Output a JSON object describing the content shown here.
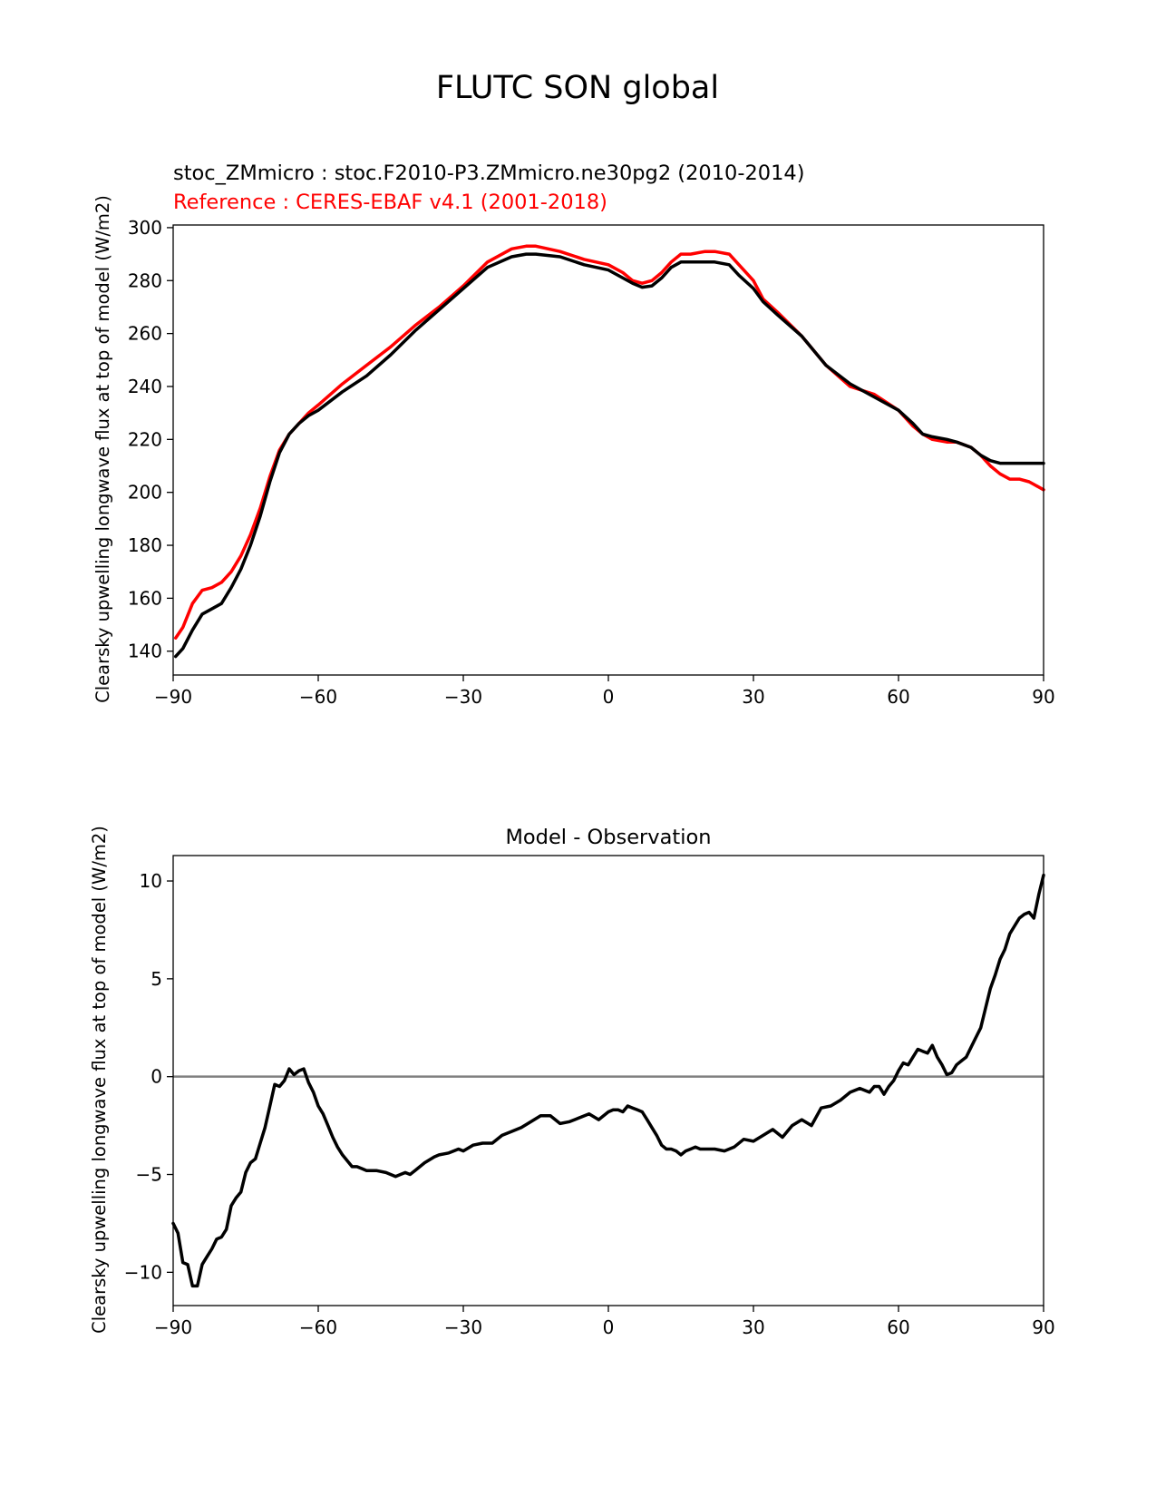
{
  "figure": {
    "suptitle": "FLUTC SON global"
  },
  "chart_data": [
    {
      "type": "line",
      "title_left": "stoc_ZMmicro : stoc.F2010-P3.ZMmicro.ne30pg2 (2010-2014)",
      "title_ref": "Reference : CERES-EBAF v4.1 (2001-2018)",
      "xlabel": "",
      "ylabel": "Clearsky upwelling longwave flux at top of model (W/m2)",
      "xlim": [
        -90,
        90
      ],
      "ylim": [
        131,
        301
      ],
      "xticks": [
        -90,
        -60,
        -30,
        0,
        30,
        60,
        90
      ],
      "xtick_labels": [
        "−90",
        "−60",
        "−30",
        "0",
        "30",
        "60",
        "90"
      ],
      "yticks": [
        140,
        160,
        180,
        200,
        220,
        240,
        260,
        280,
        300
      ],
      "ytick_labels": [
        "140",
        "160",
        "180",
        "200",
        "220",
        "240",
        "260",
        "280",
        "300"
      ],
      "series": [
        {
          "color": "#ff0000",
          "x": [
            -89.5,
            -88,
            -86,
            -84,
            -82,
            -80,
            -78,
            -76,
            -74,
            -72,
            -70,
            -68,
            -66,
            -64,
            -62,
            -60,
            -55,
            -50,
            -45,
            -40,
            -35,
            -30,
            -25,
            -20,
            -17,
            -15,
            -10,
            -5,
            0,
            3,
            5,
            7,
            9,
            11,
            13,
            15,
            17,
            20,
            22,
            25,
            27,
            30,
            32,
            35,
            40,
            45,
            50,
            55,
            60,
            63,
            65,
            67,
            70,
            72,
            75,
            77,
            79,
            81,
            83,
            85,
            87,
            88,
            90
          ],
          "values": [
            145,
            149,
            158,
            163,
            164,
            166,
            170,
            176,
            184,
            194,
            206,
            216,
            222,
            226,
            230,
            233,
            241,
            248,
            255,
            263,
            270,
            278,
            287,
            292,
            293,
            293,
            291,
            288,
            286,
            283,
            280,
            279,
            280,
            283,
            287,
            290,
            290,
            291,
            291,
            290,
            286,
            280,
            273,
            268,
            259,
            248,
            240,
            237,
            231,
            225,
            222,
            220,
            219,
            219,
            217,
            214,
            210,
            207,
            205,
            205,
            204,
            203,
            201
          ]
        },
        {
          "color": "#000000",
          "x": [
            -89.5,
            -88,
            -86,
            -84,
            -82,
            -80,
            -78,
            -76,
            -74,
            -72,
            -70,
            -68,
            -66,
            -64,
            -62,
            -60,
            -55,
            -50,
            -45,
            -40,
            -35,
            -30,
            -25,
            -20,
            -17,
            -15,
            -10,
            -5,
            0,
            3,
            5,
            7,
            9,
            11,
            13,
            15,
            17,
            20,
            22,
            25,
            27,
            30,
            32,
            35,
            40,
            45,
            50,
            55,
            60,
            63,
            65,
            67,
            70,
            72,
            75,
            77,
            79,
            81,
            83,
            85,
            87,
            88,
            90
          ],
          "values": [
            138,
            141,
            148,
            154,
            156,
            158,
            164,
            171,
            180,
            191,
            204,
            215,
            222,
            226,
            229,
            231,
            238,
            244,
            252,
            261,
            269,
            277,
            285,
            289,
            290,
            290,
            289,
            286,
            284,
            281,
            279,
            277.5,
            278,
            281,
            285,
            287,
            287,
            287,
            287,
            286,
            282,
            277,
            272,
            267,
            259,
            248,
            241,
            236,
            231,
            226,
            222,
            221,
            220,
            219,
            217,
            214,
            212,
            211,
            211,
            211,
            211,
            211,
            211
          ]
        }
      ]
    },
    {
      "type": "line",
      "title": "Model - Observation",
      "xlabel": "",
      "ylabel": "Clearsky upwelling longwave flux at top of model (W/m2)",
      "xlim": [
        -90,
        90
      ],
      "ylim": [
        -11.7,
        11.3
      ],
      "xticks": [
        -90,
        -60,
        -30,
        0,
        30,
        60,
        90
      ],
      "xtick_labels": [
        "−90",
        "−60",
        "−30",
        "0",
        "30",
        "60",
        "90"
      ],
      "yticks": [
        -10,
        -5,
        0,
        5,
        10
      ],
      "ytick_labels": [
        "−10",
        "−5",
        "0",
        "5",
        "10"
      ],
      "reference_line": {
        "y": 0,
        "color": "#808080"
      },
      "series": [
        {
          "color": "#000000",
          "x": [
            -90,
            -89,
            -88,
            -87,
            -86,
            -85,
            -84,
            -83,
            -82,
            -81,
            -80,
            -79,
            -78,
            -77,
            -76,
            -75,
            -74,
            -73,
            -72,
            -71,
            -70,
            -69,
            -68,
            -67,
            -66,
            -65,
            -64,
            -63,
            -62,
            -61,
            -60,
            -59,
            -58,
            -57,
            -56,
            -55,
            -54,
            -53,
            -52,
            -51,
            -50,
            -48,
            -46,
            -44,
            -43,
            -42,
            -41,
            -40,
            -38,
            -36,
            -35,
            -33,
            -31,
            -30,
            -28,
            -26,
            -24,
            -22,
            -20,
            -18,
            -16,
            -14,
            -12,
            -10,
            -8,
            -6,
            -4,
            -2,
            0,
            1,
            2,
            3,
            4,
            5,
            6,
            7,
            8,
            9,
            10,
            11,
            12,
            13,
            14,
            15,
            16,
            17,
            18,
            19,
            20,
            22,
            24,
            26,
            28,
            30,
            32,
            34,
            36,
            38,
            40,
            42,
            44,
            46,
            48,
            50,
            52,
            54,
            55,
            56,
            57,
            58,
            59,
            60,
            61,
            62,
            63,
            64,
            65,
            66,
            67,
            68,
            69,
            70,
            71,
            72,
            73,
            74,
            75,
            76,
            77,
            78,
            79,
            80,
            81,
            82,
            83,
            84,
            85,
            86,
            87,
            88,
            89,
            90
          ],
          "values": [
            -7.5,
            -8.0,
            -9.5,
            -9.6,
            -10.7,
            -10.7,
            -9.6,
            -9.2,
            -8.8,
            -8.3,
            -8.2,
            -7.8,
            -6.6,
            -6.2,
            -5.9,
            -4.9,
            -4.4,
            -4.2,
            -3.4,
            -2.6,
            -1.5,
            -0.4,
            -0.5,
            -0.2,
            0.4,
            0.1,
            0.3,
            0.4,
            -0.3,
            -0.8,
            -1.5,
            -1.9,
            -2.5,
            -3.1,
            -3.6,
            -4.0,
            -4.3,
            -4.6,
            -4.6,
            -4.7,
            -4.8,
            -4.8,
            -4.9,
            -5.1,
            -5.0,
            -4.9,
            -5.0,
            -4.8,
            -4.4,
            -4.1,
            -4.0,
            -3.9,
            -3.7,
            -3.8,
            -3.5,
            -3.4,
            -3.4,
            -3.0,
            -2.8,
            -2.6,
            -2.3,
            -2.0,
            -2.0,
            -2.4,
            -2.3,
            -2.1,
            -1.9,
            -2.2,
            -1.8,
            -1.7,
            -1.7,
            -1.8,
            -1.5,
            -1.6,
            -1.7,
            -1.8,
            -2.2,
            -2.6,
            -3.0,
            -3.5,
            -3.7,
            -3.7,
            -3.8,
            -4.0,
            -3.8,
            -3.7,
            -3.6,
            -3.7,
            -3.7,
            -3.7,
            -3.8,
            -3.6,
            -3.2,
            -3.3,
            -3.0,
            -2.7,
            -3.1,
            -2.5,
            -2.2,
            -2.5,
            -1.6,
            -1.5,
            -1.2,
            -0.8,
            -0.6,
            -0.8,
            -0.5,
            -0.5,
            -0.9,
            -0.5,
            -0.2,
            0.3,
            0.7,
            0.6,
            1.0,
            1.4,
            1.3,
            1.2,
            1.6,
            1.0,
            0.6,
            0.1,
            0.2,
            0.6,
            0.8,
            1.0,
            1.5,
            2.0,
            2.5,
            3.5,
            4.5,
            5.2,
            6.0,
            6.5,
            7.3,
            7.7,
            8.1,
            8.3,
            8.4,
            8.1,
            9.3,
            10.3
          ]
        }
      ]
    }
  ]
}
